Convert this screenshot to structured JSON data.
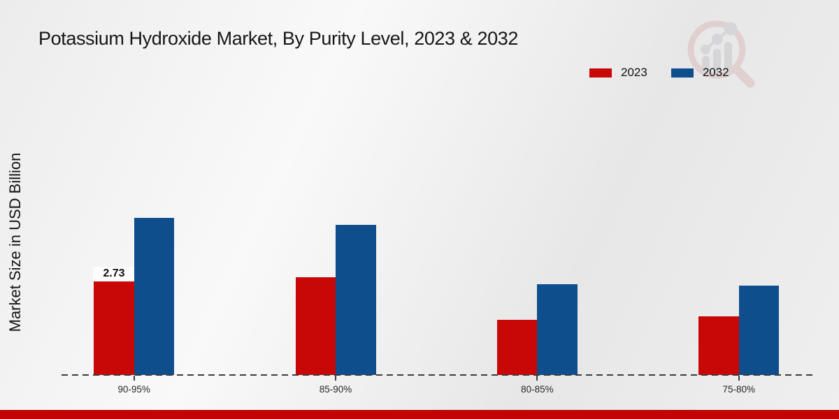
{
  "title": "Potassium Hydroxide Market, By Purity Level, 2023 & 2032",
  "y_axis_label": "Market Size in USD Billion",
  "legend": {
    "position": "top-right",
    "items": [
      {
        "label": "2023",
        "color": "#c80707"
      },
      {
        "label": "2032",
        "color": "#0f4e8c"
      }
    ]
  },
  "watermark": "market-research-future-logo",
  "footer": {
    "bar_color": "#c20404"
  },
  "colors": {
    "series_2023": "#c80707",
    "series_2032": "#0f4e8c",
    "baseline_dash": "#3d3d3d",
    "background": "#ededee"
  },
  "chart_data": {
    "type": "bar",
    "title": "Potassium Hydroxide Market, By Purity Level, 2023 & 2032",
    "xlabel": "",
    "ylabel": "Market Size in USD Billion",
    "categories": [
      "90-95%",
      "85-90%",
      "80-85%",
      "75-80%"
    ],
    "series": [
      {
        "name": "2023",
        "color": "#c80707",
        "values": [
          2.73,
          2.86,
          1.61,
          1.71
        ]
      },
      {
        "name": "2032",
        "color": "#0f4e8c",
        "values": [
          4.58,
          4.37,
          2.65,
          2.61
        ]
      }
    ],
    "data_labels": [
      {
        "category": "90-95%",
        "series": "2023",
        "text": "2.73"
      }
    ],
    "ylim": [
      0,
      5
    ],
    "grid": false,
    "y_axis_ticks_visible": false,
    "baseline_style": "dashed",
    "legend_position": "top-right"
  }
}
